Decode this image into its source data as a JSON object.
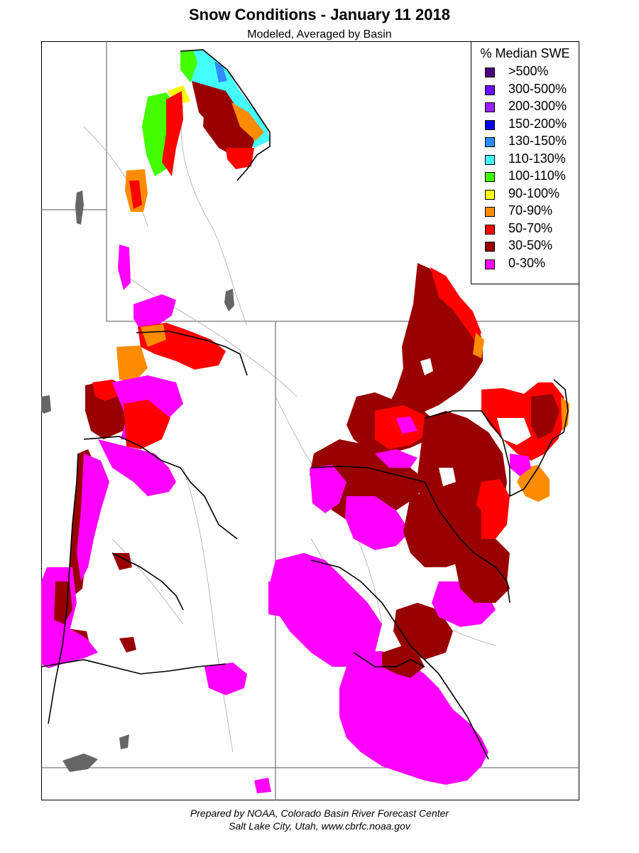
{
  "title": "Snow Conditions - January 11 2018",
  "subtitle": "Modeled, Averaged by Basin",
  "legend": {
    "title": "% Median SWE",
    "items": [
      {
        "label": ">500%",
        "color": "#4b0082"
      },
      {
        "label": "300-500%",
        "color": "#6a0dff"
      },
      {
        "label": "200-300%",
        "color": "#9b1fff"
      },
      {
        "label": "150-200%",
        "color": "#0000ff"
      },
      {
        "label": "130-150%",
        "color": "#2f8cff"
      },
      {
        "label": "110-130%",
        "color": "#44ffff"
      },
      {
        "label": "100-110%",
        "color": "#44ff00"
      },
      {
        "label": "90-100%",
        "color": "#ffff00"
      },
      {
        "label": "70-90%",
        "color": "#ff8c00"
      },
      {
        "label": "50-70%",
        "color": "#ff0000"
      },
      {
        "label": "30-50%",
        "color": "#990000"
      },
      {
        "label": "0-30%",
        "color": "#ff00ff"
      }
    ]
  },
  "footer": {
    "line1": "Prepared by NOAA, Colorado Basin River Forecast Center",
    "line2": "Salt Lake City, Utah, www.cbrfc.noaa.gov"
  }
}
